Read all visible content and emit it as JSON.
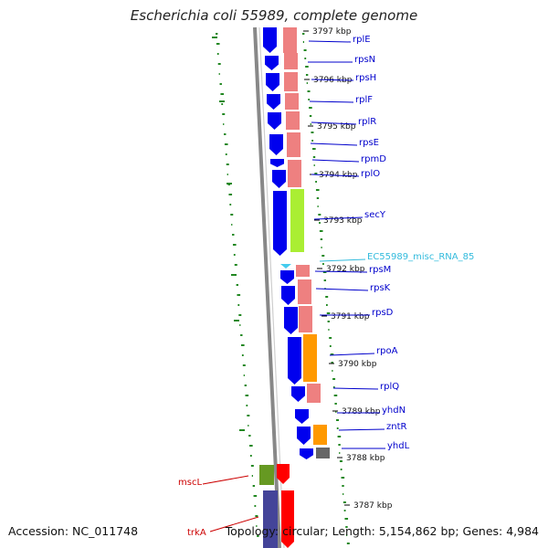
{
  "title": "Escherichia coli 55989, complete genome",
  "accession": "Accession: NC_011748",
  "summary": "Topology: circular; Length: 5,154,862 bp; Genes: 4,984",
  "colors": {
    "cds": "#0000ee",
    "rna": "#44ccee",
    "ring_salmon": "#ee8080",
    "ring_green": "#aaee33",
    "ring_orange": "#ff9900",
    "ring_gray": "#666666",
    "gc_skew": "#228822",
    "backbone": "#888888",
    "red_gene": "#ff0000",
    "olive": "#669922",
    "slate": "#444499",
    "label_blue": "#0000cc",
    "label_cyan": "#33bbdd",
    "label_red": "#cc0000"
  },
  "ticks": [
    "3797 kbp",
    "3796 kbp",
    "3795 kbp",
    "3794 kbp",
    "3793 kbp",
    "3792 kbp",
    "3791 kbp",
    "3790 kbp",
    "3789 kbp",
    "3788 kbp",
    "3787 kbp"
  ],
  "genes_right": [
    "rplE",
    "rpsN",
    "rpsH",
    "rplF",
    "rplR",
    "rpsE",
    "rpmD",
    "rplO",
    "secY",
    "EC55989_misc_RNA_85",
    "rpsM",
    "rpsK",
    "rpsD",
    "rpoA",
    "rplQ",
    "yhdN",
    "zntR",
    "yhdL"
  ],
  "genes_left": [
    "mscL",
    "trkA"
  ]
}
